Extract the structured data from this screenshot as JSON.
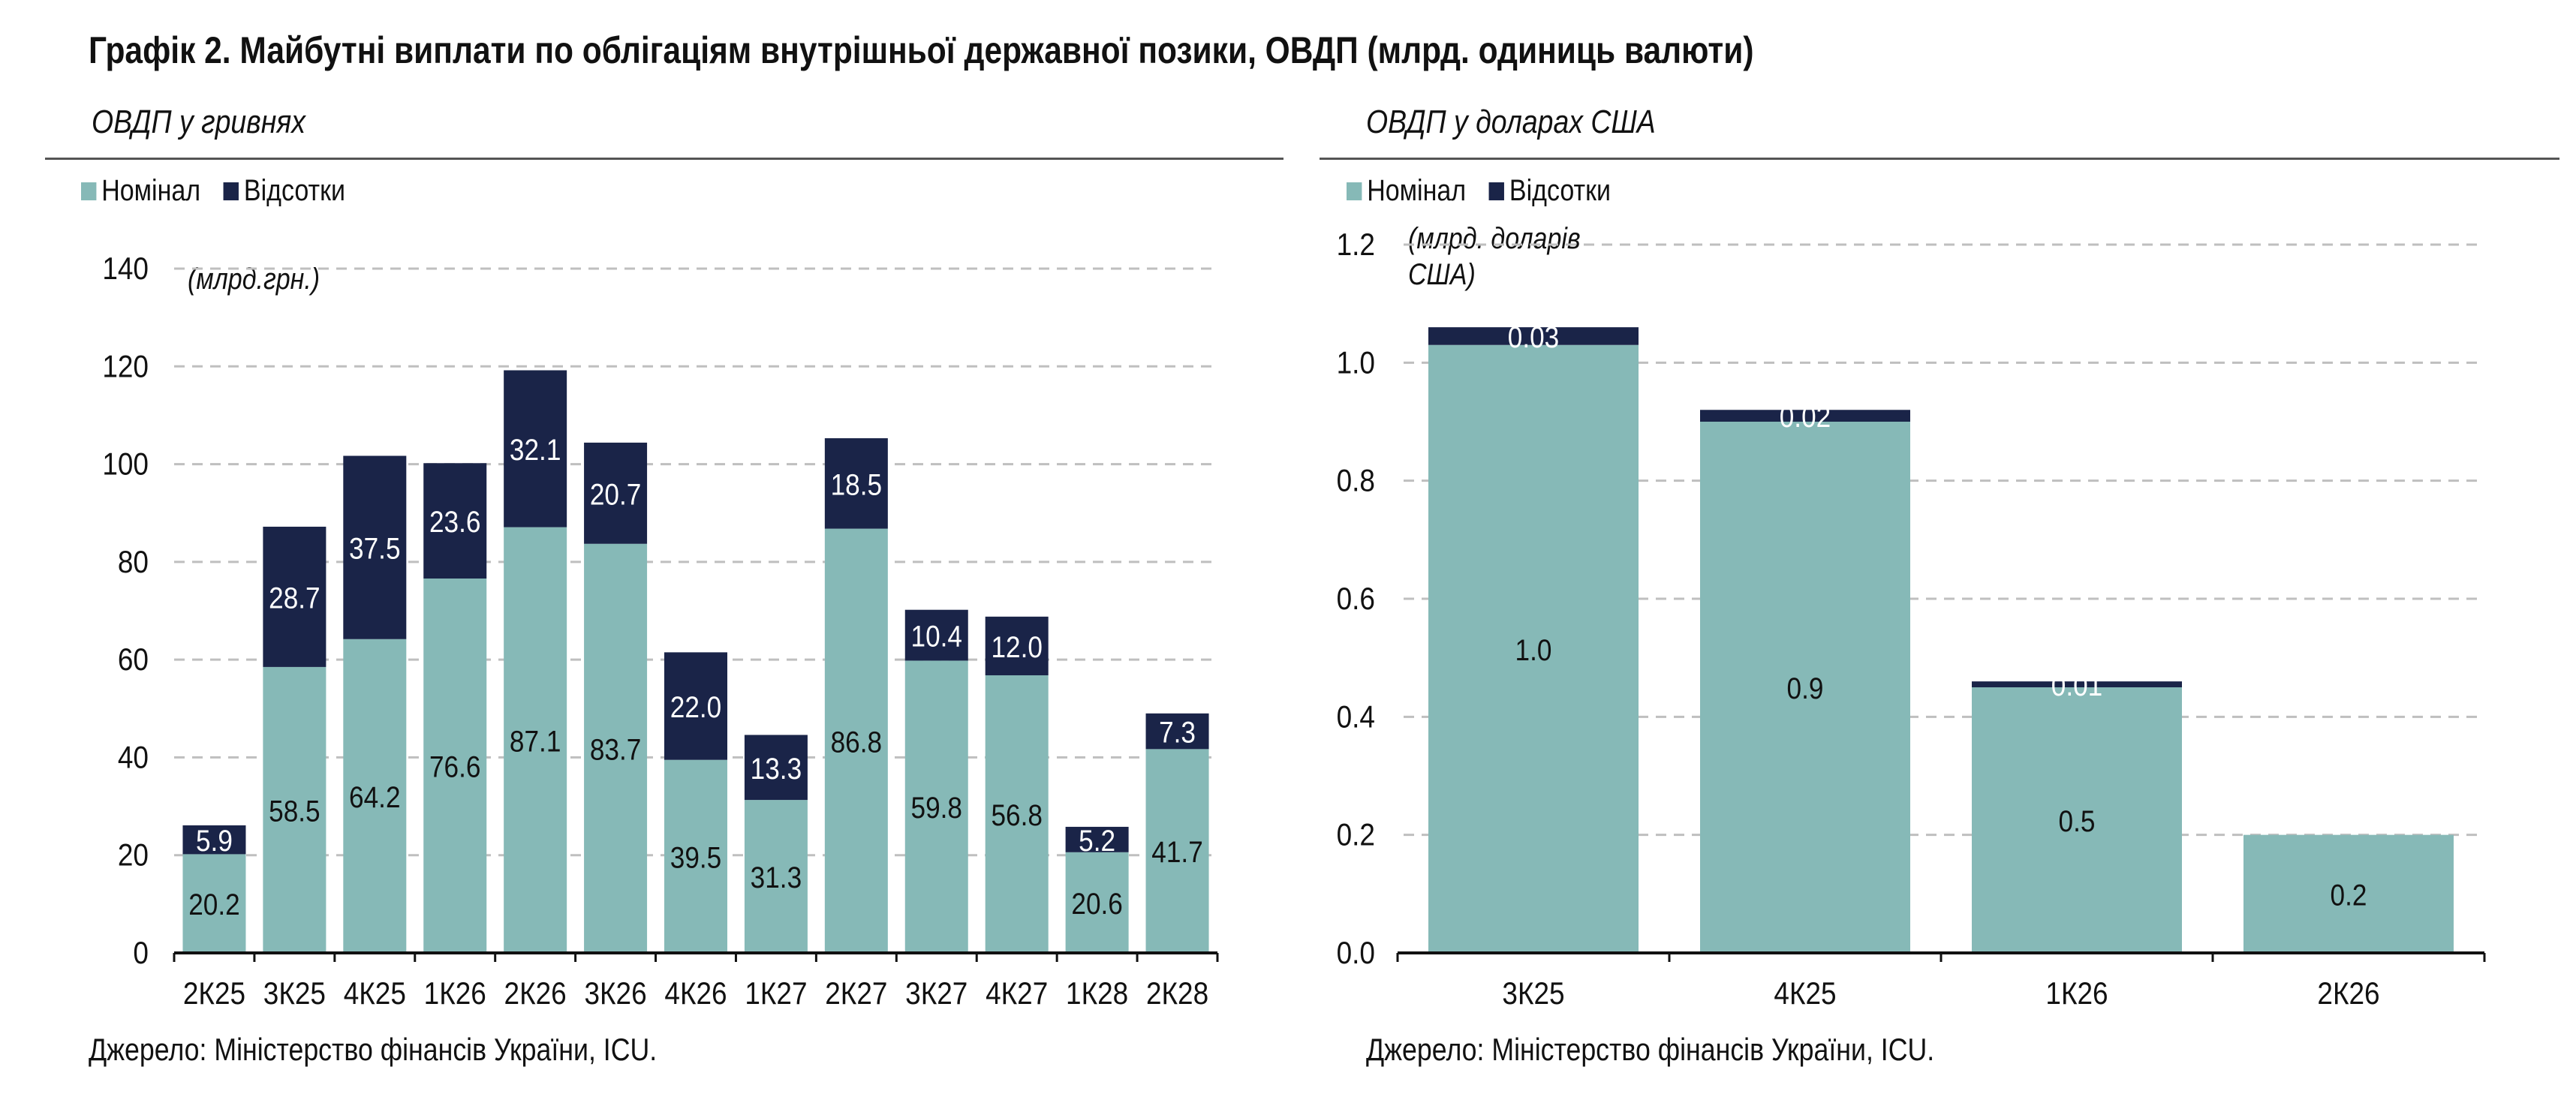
{
  "title": "Графік 2. Майбутні виплати по облігаціям внутрішньої державної позики, ОВДП (млрд. одиниць валюти)",
  "colors": {
    "nominal": "#86b9b7",
    "interest": "#1a2448",
    "grid": "#bfbfbf",
    "axis": "#111111"
  },
  "left": {
    "subtitle": "ОВДП у гривнях",
    "legend": [
      "Номінал",
      "Відсотки"
    ],
    "unit": "(млрд.грн.)",
    "source": "Джерело: Міністерство фінансів України, ICU."
  },
  "right": {
    "subtitle": "ОВДП у доларах США",
    "legend": [
      "Номінал",
      "Відсотки"
    ],
    "unit_line1": "(млрд. доларів",
    "unit_line2": "США)",
    "source": "Джерело: Міністерство фінансів України, ICU."
  },
  "chart_data": [
    {
      "type": "bar",
      "stacked": true,
      "title": "ОВДП у гривнях",
      "unit": "(млрд.грн.)",
      "categories": [
        "2К25",
        "3К25",
        "4К25",
        "1К26",
        "2К26",
        "3К26",
        "4К26",
        "1К27",
        "2К27",
        "3К27",
        "4К27",
        "1К28",
        "2К28"
      ],
      "series": [
        {
          "name": "Номінал",
          "values": [
            20.2,
            58.5,
            64.2,
            76.6,
            87.1,
            83.7,
            39.5,
            31.3,
            86.8,
            59.8,
            56.8,
            20.6,
            41.7
          ]
        },
        {
          "name": "Відсотки",
          "values": [
            5.9,
            28.7,
            37.5,
            23.6,
            32.1,
            20.7,
            22.0,
            13.3,
            18.5,
            10.4,
            12.0,
            5.2,
            7.3
          ]
        }
      ],
      "ylim": [
        0,
        140
      ],
      "yticks": [
        0,
        20,
        40,
        60,
        80,
        100,
        120,
        140
      ],
      "ytick_labels": [
        "0",
        "20",
        "40",
        "60",
        "80",
        "100",
        "120",
        "140"
      ],
      "data_labels": {
        "nominal": [
          "20.2",
          "58.5",
          "64.2",
          "76.6",
          "87.1",
          "83.7",
          "39.5",
          "31.3",
          "86.8",
          "59.8",
          "56.8",
          "20.6",
          "41.7"
        ],
        "interest": [
          "5.9",
          "28.7",
          "37.5",
          "23.6",
          "32.1",
          "20.7",
          "22.0",
          "13.3",
          "18.5",
          "10.4",
          "12.0",
          "5.2",
          "7.3"
        ]
      },
      "grid": true,
      "legend_position": "top-left"
    },
    {
      "type": "bar",
      "stacked": true,
      "title": "ОВДП у доларах США",
      "unit": "(млрд. доларів США)",
      "categories": [
        "3К25",
        "4К25",
        "1К26",
        "2К26"
      ],
      "series": [
        {
          "name": "Номінал",
          "values": [
            1.03,
            0.9,
            0.45,
            0.2
          ]
        },
        {
          "name": "Відсотки",
          "values": [
            0.03,
            0.02,
            0.01,
            0.0
          ]
        }
      ],
      "ylim": [
        0,
        1.2
      ],
      "yticks": [
        0,
        0.2,
        0.4,
        0.6,
        0.8,
        1.0,
        1.2
      ],
      "ytick_labels": [
        "0.0",
        "0.2",
        "0.4",
        "0.6",
        "0.8",
        "1.0",
        "1.2"
      ],
      "data_labels": {
        "nominal": [
          "1.0",
          "0.9",
          "0.5",
          "0.2"
        ],
        "interest": [
          "0.03",
          "0.02",
          "0.01",
          ""
        ]
      },
      "grid": true,
      "legend_position": "top-left"
    }
  ]
}
